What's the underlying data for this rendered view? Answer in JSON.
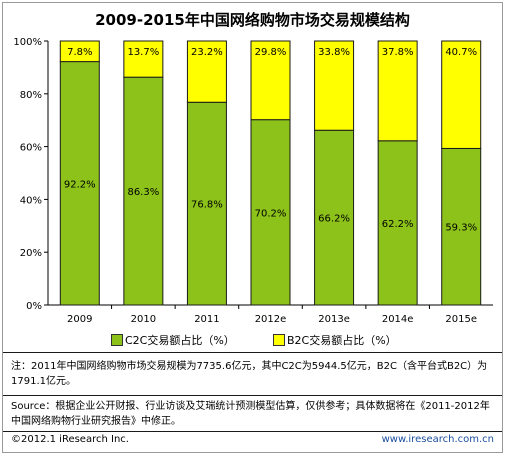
{
  "title": "2009-2015年中国网络购物市场交易规模结构",
  "chart_data": {
    "type": "bar",
    "stacked": true,
    "categories": [
      "2009",
      "2010",
      "2011",
      "2012e",
      "2013e",
      "2014e",
      "2015e"
    ],
    "series": [
      {
        "name": "C2C交易额占比（%）",
        "values": [
          92.2,
          86.3,
          76.8,
          70.2,
          66.2,
          62.2,
          59.3
        ],
        "color": "#8cc21a"
      },
      {
        "name": "B2C交易额占比（%）",
        "values": [
          7.8,
          13.7,
          23.2,
          29.8,
          33.8,
          37.8,
          40.7
        ],
        "color": "#ffff00"
      }
    ],
    "value_labels": {
      "C2C": [
        "92.2%",
        "86.3%",
        "76.8%",
        "70.2%",
        "66.2%",
        "62.2%",
        "59.3%"
      ],
      "B2C": [
        "7.8%",
        "13.7%",
        "23.2%",
        "29.8%",
        "33.8%",
        "37.8%",
        "40.7%"
      ]
    },
    "ylim": [
      0,
      100
    ],
    "yticks": [
      0,
      20,
      40,
      60,
      80,
      100
    ],
    "ytick_labels": [
      "0%",
      "20%",
      "40%",
      "60%",
      "80%",
      "100%"
    ],
    "legend_position": "bottom",
    "grid": false
  },
  "note": "注：2011年中国网络购物市场交易规模为7735.6亿元，其中C2C为5944.5亿元，B2C（含平台式B2C）为1791.1亿元。",
  "source": "Source：根据企业公开财报、行业访谈及艾瑞统计预测模型估算，仅供参考；具体数据将在《2011-2012年中国网络购物行业研究报告》中修正。",
  "copyright": "©2012.1 iResearch Inc.",
  "website": "www.iresearch.com.cn"
}
